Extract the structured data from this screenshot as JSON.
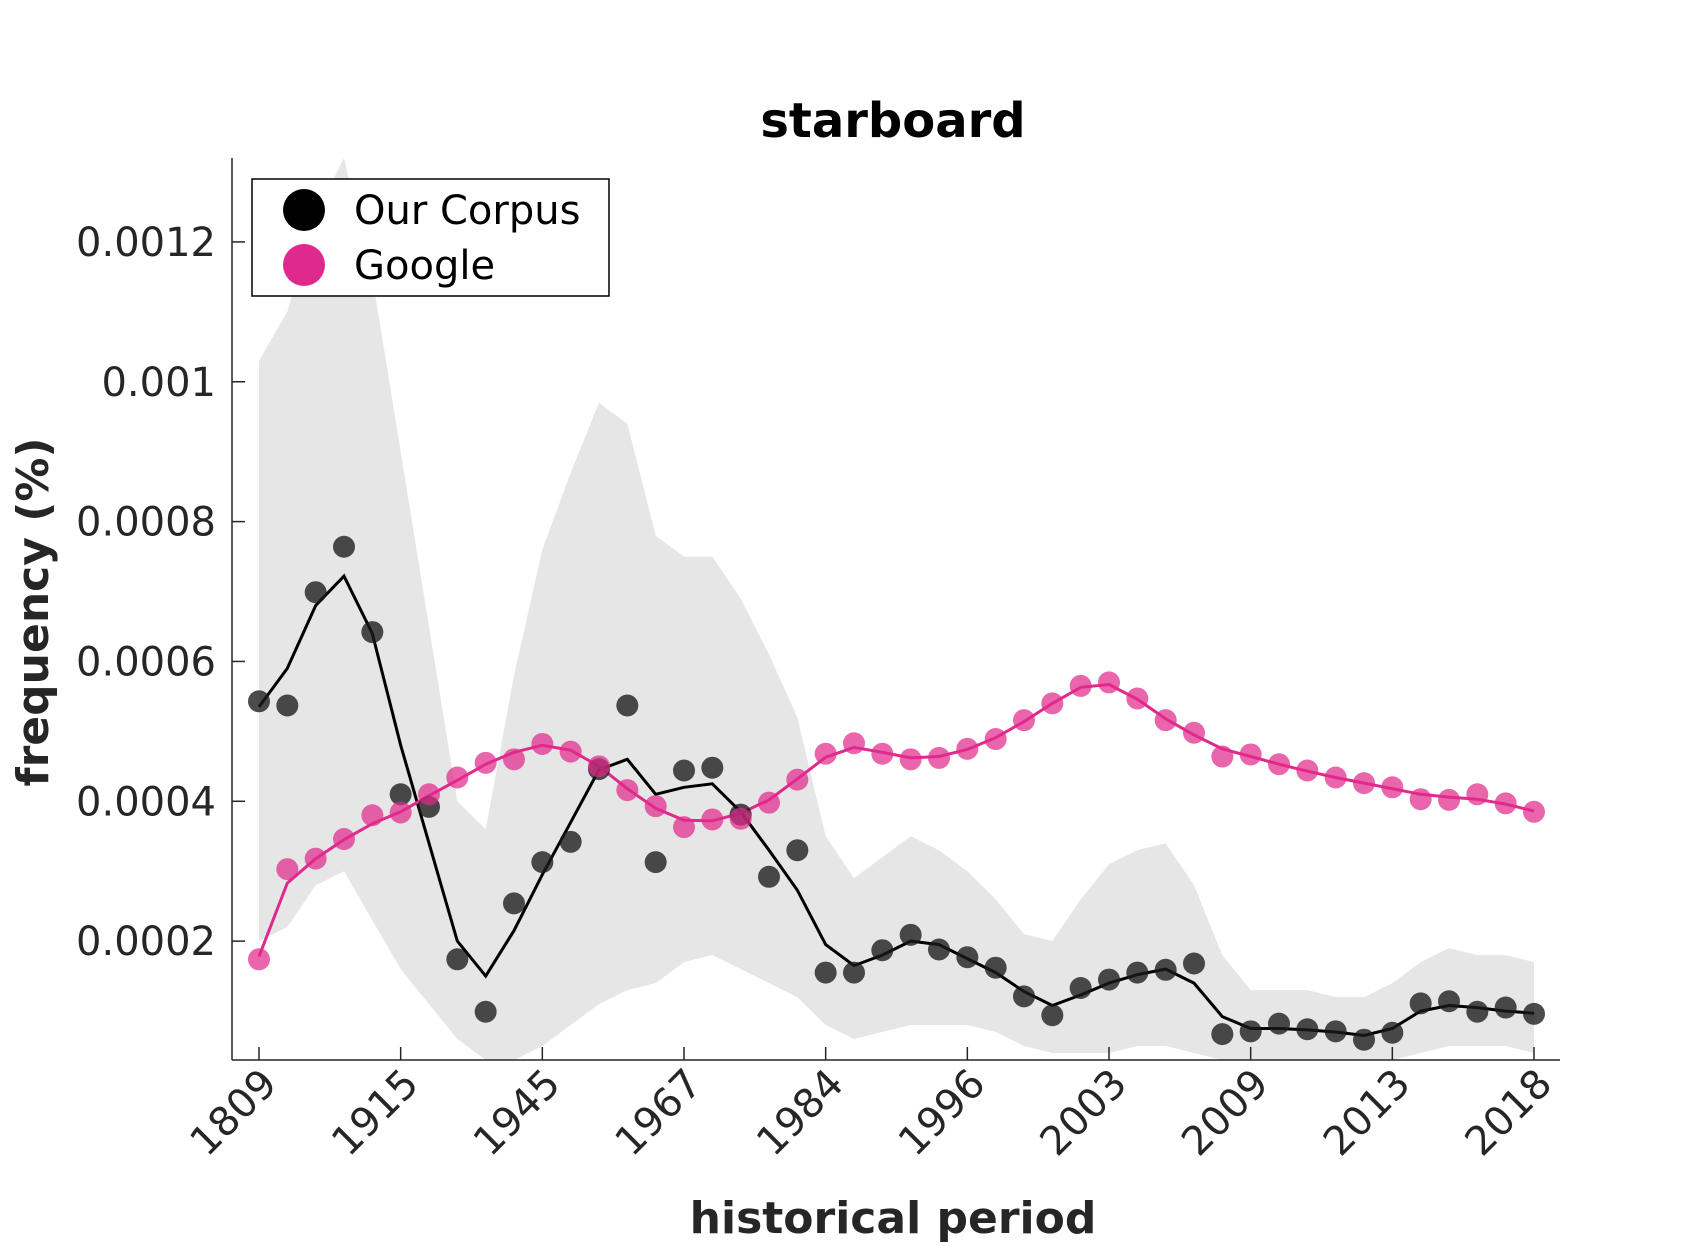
{
  "chart_data": {
    "type": "line",
    "title": "starboard",
    "xlabel": "historical period",
    "ylabel": "frequency (%)",
    "xtick_labels": [
      "1809",
      "1915",
      "1945",
      "1967",
      "1984",
      "1996",
      "2003",
      "2009",
      "2013",
      "2018"
    ],
    "ytick_labels": [
      "0.0002",
      "0.0004",
      "0.0006",
      "0.0008",
      "0.001",
      "0.0012"
    ],
    "yticks": [
      0.0002,
      0.0004,
      0.0006,
      0.0008,
      0.001,
      0.0012
    ],
    "ylim": [
      3e-05,
      0.00132
    ],
    "grid": false,
    "legend_position": "top-left",
    "colors": {
      "corpus": "#000000",
      "google": "#e0298c",
      "band": "#e6e6e6"
    },
    "series": [
      {
        "name": "Our Corpus",
        "scatter": [
          0.000543,
          0.000537,
          0.000699,
          0.000764,
          0.000642,
          0.00041,
          0.000392,
          0.000174,
          9.9e-05,
          0.000254,
          0.000313,
          0.000342,
          0.000446,
          0.000537,
          0.000313,
          0.000444,
          0.000448,
          0.000381,
          0.000292,
          0.00033,
          0.000155,
          0.000155,
          0.000187,
          0.000209,
          0.000188,
          0.000177,
          0.000162,
          0.000121,
          9.4e-05,
          0.000133,
          0.000145,
          0.000155,
          0.000159,
          0.000168,
          6.7e-05,
          7.1e-05,
          8.2e-05,
          7.4e-05,
          7.1e-05,
          5.9e-05,
          6.9e-05,
          0.000111,
          0.000114,
          9.9e-05,
          0.000105,
          9.6e-05
        ],
        "smooth": [
          0.000535,
          0.00059,
          0.00068,
          0.000722,
          0.00064,
          0.00048,
          0.00034,
          0.0002,
          0.00015,
          0.000215,
          0.000295,
          0.00037,
          0.000445,
          0.00046,
          0.00041,
          0.00042,
          0.000425,
          0.000385,
          0.00033,
          0.000273,
          0.000195,
          0.000165,
          0.00018,
          0.0002,
          0.000195,
          0.000175,
          0.000155,
          0.000128,
          0.000108,
          0.000123,
          0.00014,
          0.000152,
          0.00016,
          0.00014,
          9.2e-05,
          7.5e-05,
          7.5e-05,
          7.3e-05,
          7e-05,
          6.5e-05,
          7.5e-05,
          0.0001,
          0.000108,
          0.000105,
          0.0001,
          9.7e-05
        ],
        "band_upper": [
          0.00103,
          0.0011,
          0.00124,
          0.00132,
          0.00115,
          0.0009,
          0.00065,
          0.0004,
          0.00036,
          0.00058,
          0.00076,
          0.00087,
          0.00097,
          0.00094,
          0.00078,
          0.00075,
          0.00075,
          0.00069,
          0.00061,
          0.00052,
          0.00035,
          0.00029,
          0.00032,
          0.00035,
          0.00033,
          0.0003,
          0.00026,
          0.00021,
          0.0002,
          0.00026,
          0.00031,
          0.00033,
          0.00034,
          0.00028,
          0.00018,
          0.00013,
          0.00013,
          0.00013,
          0.00012,
          0.00012,
          0.00014,
          0.00017,
          0.00019,
          0.00018,
          0.00018,
          0.00017
        ],
        "band_lower": [
          0.0002,
          0.00022,
          0.00028,
          0.0003,
          0.00023,
          0.00016,
          0.00011,
          6e-05,
          3e-05,
          3e-05,
          5e-05,
          8e-05,
          0.00011,
          0.00013,
          0.00014,
          0.00017,
          0.00018,
          0.00016,
          0.00014,
          0.00012,
          8e-05,
          6e-05,
          7e-05,
          8e-05,
          8e-05,
          8e-05,
          7e-05,
          5e-05,
          4e-05,
          4e-05,
          4e-05,
          5e-05,
          5e-05,
          4e-05,
          3e-05,
          3e-05,
          3e-05,
          3e-05,
          3e-05,
          3e-05,
          3e-05,
          4e-05,
          5e-05,
          5e-05,
          5e-05,
          4e-05
        ]
      },
      {
        "name": "Google",
        "scatter": [
          0.000174,
          0.000303,
          0.000318,
          0.000346,
          0.00038,
          0.000384,
          0.00041,
          0.000434,
          0.000455,
          0.00046,
          0.000482,
          0.000471,
          0.00045,
          0.000416,
          0.000393,
          0.000363,
          0.000374,
          0.000375,
          0.000398,
          0.000431,
          0.000468,
          0.000483,
          0.000468,
          0.00046,
          0.000462,
          0.000475,
          0.000489,
          0.000516,
          0.00054,
          0.000565,
          0.00057,
          0.000547,
          0.000516,
          0.000498,
          0.000464,
          0.000467,
          0.000453,
          0.000444,
          0.000434,
          0.000426,
          0.00042,
          0.000403,
          0.000402,
          0.00041,
          0.000397,
          0.000385
        ],
        "smooth": [
          0.000178,
          0.000283,
          0.000318,
          0.000345,
          0.000368,
          0.000385,
          0.000408,
          0.00043,
          0.000453,
          0.00047,
          0.00048,
          0.000473,
          0.00045,
          0.000418,
          0.00039,
          0.000373,
          0.000372,
          0.000383,
          0.000402,
          0.000432,
          0.000463,
          0.000477,
          0.00047,
          0.000462,
          0.000464,
          0.000474,
          0.000491,
          0.000514,
          0.00054,
          0.000563,
          0.000567,
          0.000546,
          0.000518,
          0.000495,
          0.000475,
          0.000464,
          0.000453,
          0.000443,
          0.000434,
          0.000426,
          0.000418,
          0.00041,
          0.000406,
          0.000403,
          0.000396,
          0.000386
        ]
      }
    ]
  }
}
